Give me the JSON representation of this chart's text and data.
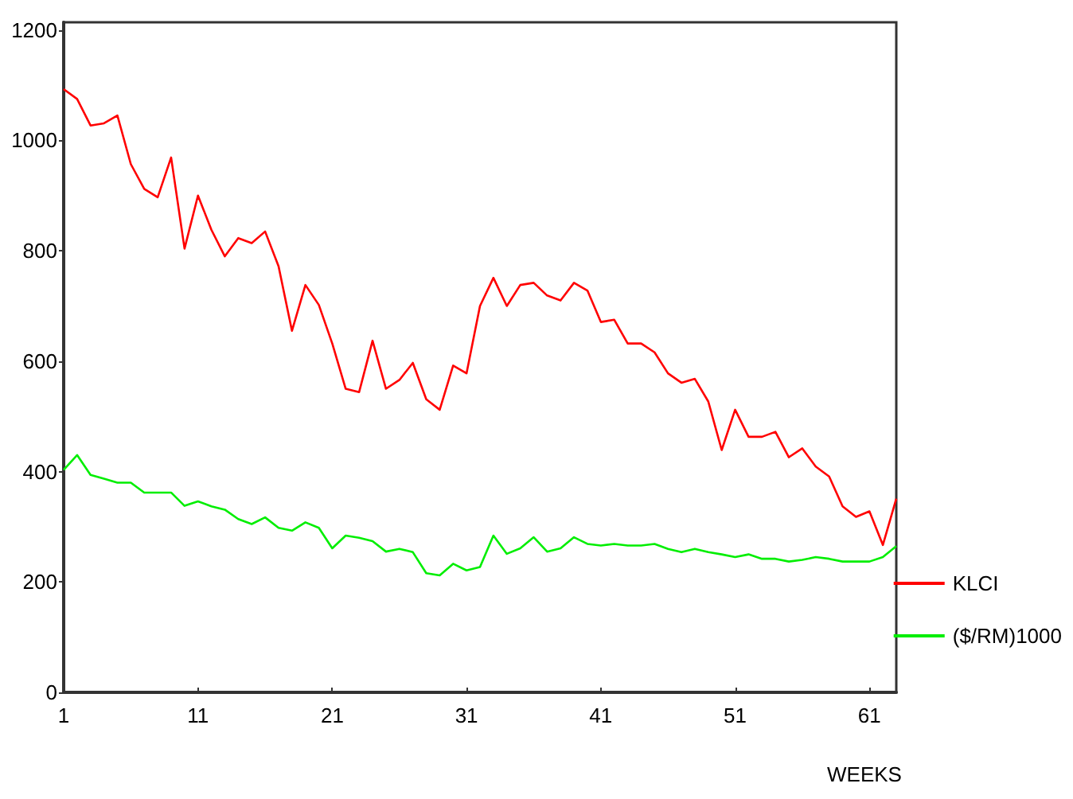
{
  "chart_data": {
    "type": "line",
    "xlabel": "WEEKS",
    "x": [
      1,
      2,
      3,
      4,
      5,
      6,
      7,
      8,
      9,
      10,
      11,
      12,
      13,
      14,
      15,
      16,
      17,
      18,
      19,
      20,
      21,
      22,
      23,
      24,
      25,
      26,
      27,
      28,
      29,
      30,
      31,
      32,
      33,
      34,
      35,
      36,
      37,
      38,
      39,
      40,
      41,
      42,
      43,
      44,
      45,
      46,
      47,
      48,
      49,
      50,
      51,
      52,
      53,
      54,
      55,
      56,
      57,
      58,
      59,
      60,
      61,
      62,
      63
    ],
    "xlim": [
      1,
      63
    ],
    "xticks": [
      1,
      11,
      21,
      31,
      41,
      51,
      61
    ],
    "ylim": [
      0,
      1214
    ],
    "yticks": [
      0,
      200,
      400,
      600,
      800,
      1000,
      1200
    ],
    "series": [
      {
        "name": "KLCI",
        "color": "#ff0000",
        "values": [
          1093,
          1075,
          1027,
          1031,
          1045,
          957,
          912,
          897,
          969,
          804,
          900,
          838,
          790,
          823,
          814,
          835,
          772,
          655,
          738,
          702,
          632,
          550,
          544,
          637,
          550,
          566,
          597,
          531,
          512,
          592,
          578,
          700,
          751,
          700,
          738,
          742,
          719,
          710,
          742,
          728,
          671,
          675,
          632,
          632,
          616,
          578,
          561,
          568,
          527,
          439,
          512,
          463,
          463,
          472,
          426,
          442,
          409,
          391,
          337,
          318,
          328,
          267,
          351
        ]
      },
      {
        "name": "($/RM)1000",
        "color": "#00ee00",
        "values": [
          403,
          430,
          394,
          387,
          380,
          380,
          362,
          362,
          362,
          338,
          346,
          337,
          331,
          314,
          305,
          317,
          298,
          293,
          308,
          298,
          261,
          284,
          280,
          274,
          255,
          260,
          254,
          216,
          212,
          233,
          221,
          227,
          284,
          251,
          261,
          281,
          255,
          261,
          281,
          269,
          266,
          269,
          266,
          266,
          269,
          260,
          254,
          260,
          254,
          250,
          245,
          250,
          242,
          242,
          237,
          240,
          245,
          242,
          237,
          237,
          237,
          245,
          265
        ]
      }
    ],
    "legend": "right",
    "grid": false,
    "marker": "none",
    "line_style": "solid"
  }
}
